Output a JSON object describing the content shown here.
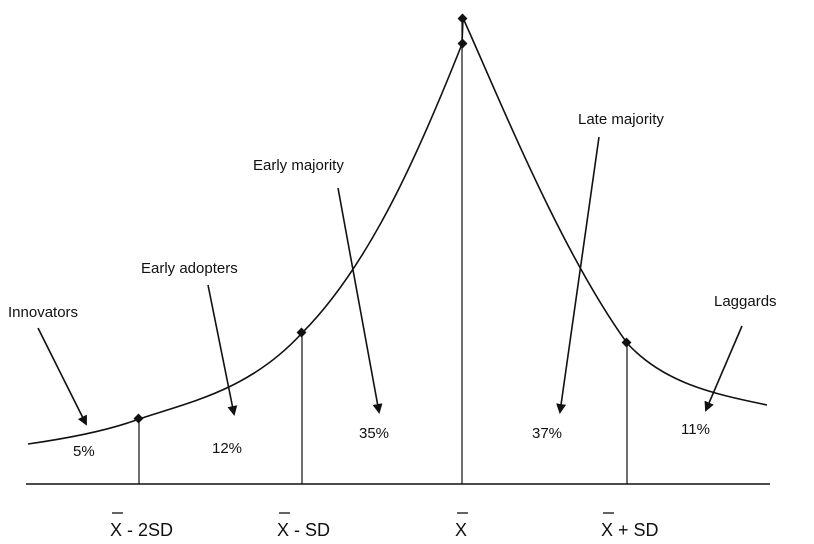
{
  "colors": {
    "ink": "#111111",
    "background": "#ffffff"
  },
  "segments": [
    {
      "name": "Innovators",
      "percent": "5%"
    },
    {
      "name": "Early adopters",
      "percent": "12%"
    },
    {
      "name": "Early majority",
      "percent": "35%"
    },
    {
      "name": "Late majority",
      "percent": "37%"
    },
    {
      "name": "Laggards",
      "percent": "11%"
    }
  ],
  "axis_labels": [
    {
      "bar": "X",
      "rest": " - 2SD"
    },
    {
      "bar": "X",
      "rest": " - SD"
    },
    {
      "bar": "X",
      "rest": ""
    },
    {
      "bar": "X",
      "rest": " + SD"
    }
  ]
}
